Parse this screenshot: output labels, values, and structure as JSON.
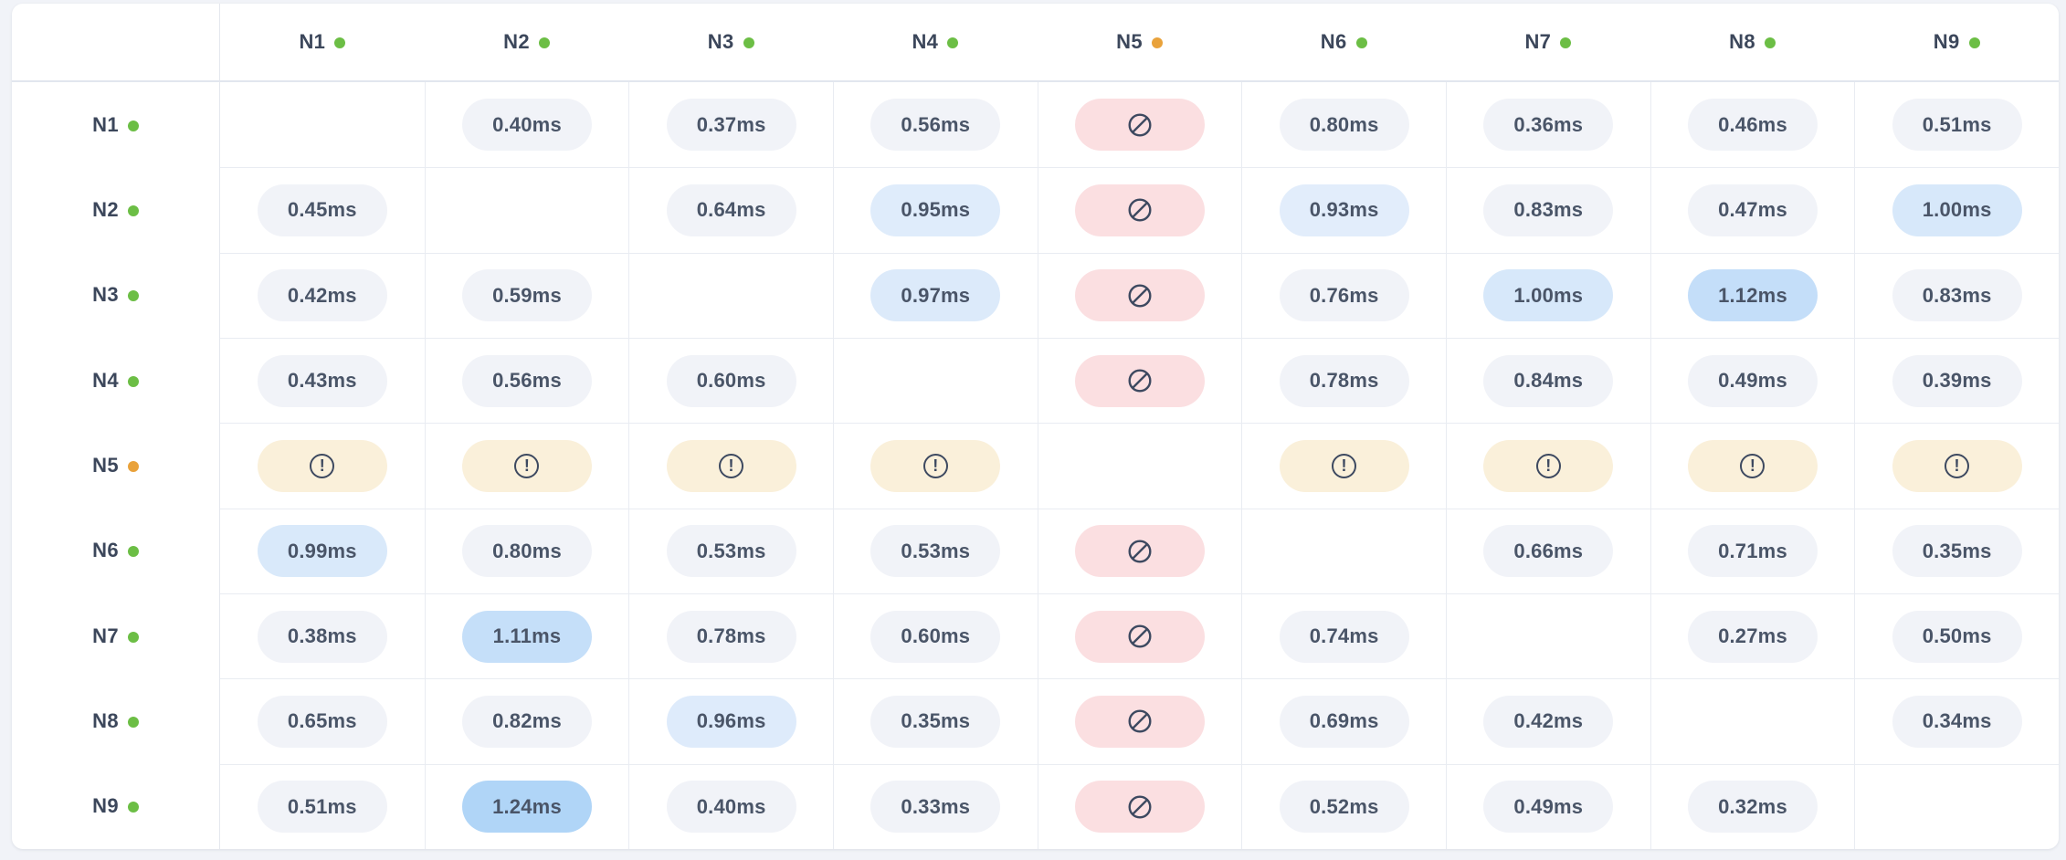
{
  "chart_data": {
    "type": "heatmap",
    "unit": "ms",
    "columns": [
      "N1",
      "N2",
      "N3",
      "N4",
      "N5",
      "N6",
      "N7",
      "N8",
      "N9"
    ],
    "rows": [
      "N1",
      "N2",
      "N3",
      "N4",
      "N5",
      "N6",
      "N7",
      "N8",
      "N9"
    ],
    "column_status": [
      "ok",
      "ok",
      "ok",
      "ok",
      "warn",
      "ok",
      "ok",
      "ok",
      "ok"
    ],
    "row_status": [
      "ok",
      "ok",
      "ok",
      "ok",
      "warn",
      "ok",
      "ok",
      "ok",
      "ok"
    ],
    "cells": [
      [
        null,
        0.4,
        0.37,
        0.56,
        "blocked",
        0.8,
        0.36,
        0.46,
        0.51
      ],
      [
        0.45,
        null,
        0.64,
        0.95,
        "blocked",
        0.93,
        0.83,
        0.47,
        1.0
      ],
      [
        0.42,
        0.59,
        null,
        0.97,
        "blocked",
        0.76,
        1.0,
        1.12,
        0.83
      ],
      [
        0.43,
        0.56,
        0.6,
        null,
        "blocked",
        0.78,
        0.84,
        0.49,
        0.39
      ],
      [
        "warning",
        "warning",
        "warning",
        "warning",
        null,
        "warning",
        "warning",
        "warning",
        "warning"
      ],
      [
        0.99,
        0.8,
        0.53,
        0.53,
        "blocked",
        null,
        0.66,
        0.71,
        0.35
      ],
      [
        0.38,
        1.11,
        0.78,
        0.6,
        "blocked",
        0.74,
        null,
        0.27,
        0.5
      ],
      [
        0.65,
        0.82,
        0.96,
        0.35,
        "blocked",
        0.69,
        0.42,
        null,
        0.34
      ],
      [
        0.51,
        1.24,
        0.4,
        0.33,
        "blocked",
        0.52,
        0.49,
        0.32,
        null
      ]
    ],
    "value_suffix": "ms",
    "legend_position": "none",
    "grid": true
  },
  "icons": {
    "blocked": "ban-icon",
    "warning": "alert-circle-icon",
    "status_ok": "green-dot-icon",
    "status_warn": "orange-dot-icon"
  },
  "colors": {
    "page_bg": "#f1f3f8",
    "card_bg": "#ffffff",
    "pill_default_bg": "#f1f3f8",
    "pill_blue_light": "#e4eefb",
    "pill_blue_strong": "#b0d5f7",
    "pill_blocked_bg": "#fbdfe1",
    "pill_warning_bg": "#faf0da",
    "icon_stroke": "#3d4960",
    "cell_text": "#4a5568",
    "label_text": "#3c475b",
    "dot_ok": "#6cbe45",
    "dot_warn": "#e9a23b"
  },
  "scale": {
    "blue_threshold": 0.92,
    "blue_max": 1.24
  }
}
